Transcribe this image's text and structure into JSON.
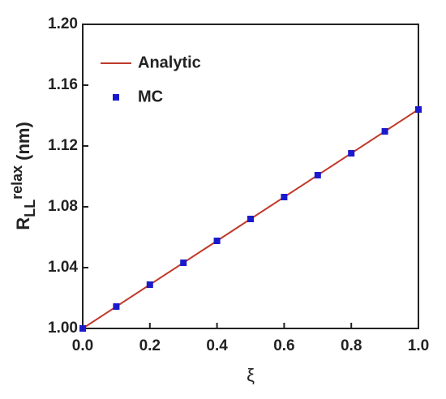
{
  "chart_data": {
    "type": "line",
    "x_label": "ξ",
    "y_label": {
      "main": "R",
      "sub": "LL",
      "sup": "relax",
      "unit": "(nm)"
    },
    "xlim": [
      0,
      1
    ],
    "ylim": [
      1.0,
      1.2
    ],
    "xticks": [
      {
        "value": 0,
        "label": "0.0"
      },
      {
        "value": 0.2,
        "label": "0.2"
      },
      {
        "value": 0.4,
        "label": "0.4"
      },
      {
        "value": 0.6,
        "label": "0.6"
      },
      {
        "value": 0.8,
        "label": "0.8"
      },
      {
        "value": 1,
        "label": "1.0"
      }
    ],
    "yticks": [
      {
        "value": 1.0,
        "label": "1.00"
      },
      {
        "value": 1.04,
        "label": "1.04"
      },
      {
        "value": 1.08,
        "label": "1.08"
      },
      {
        "value": 1.12,
        "label": "1.12"
      },
      {
        "value": 1.16,
        "label": "1.16"
      },
      {
        "value": 1.2,
        "label": "1.20"
      }
    ],
    "legend": "upper-left",
    "series": [
      {
        "name": "Analytic",
        "color": "#c0392b",
        "mode": "line",
        "x": [
          0,
          1
        ],
        "values": [
          1.0,
          1.144
        ]
      },
      {
        "name": "MC",
        "color": "#1a1acc",
        "mode": "marker",
        "x": [
          0,
          0.1,
          0.2,
          0.3,
          0.4,
          0.5,
          0.6,
          0.7,
          0.8,
          0.9,
          1.0
        ],
        "values": [
          1.0,
          1.0144,
          1.0288,
          1.0432,
          1.0576,
          1.072,
          1.0864,
          1.1008,
          1.1152,
          1.1296,
          1.144
        ]
      }
    ]
  }
}
